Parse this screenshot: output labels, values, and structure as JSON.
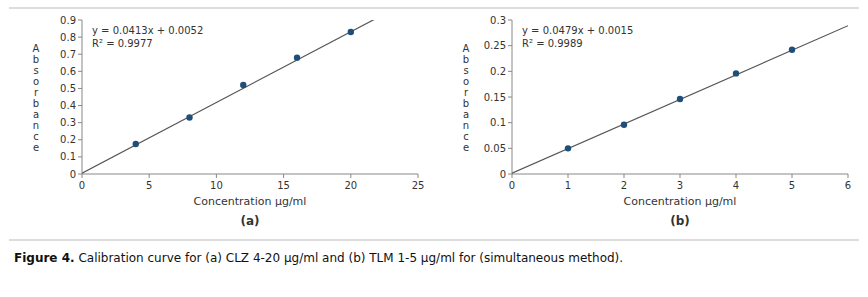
{
  "chart_data": [
    {
      "type": "scatter",
      "title": "(a)",
      "x_label": "Concentration µg/ml",
      "y_label": "Absorbance",
      "x": [
        4,
        8,
        12,
        16,
        20
      ],
      "values": [
        0.175,
        0.33,
        0.52,
        0.68,
        0.83
      ],
      "color": "#1F4E79",
      "trendline": {
        "slope": 0.0413,
        "intercept": 0.0052,
        "color": "#555555"
      },
      "annotations": [
        "y = 0.0413x + 0.0052",
        "R² = 0.9977"
      ],
      "xlim": [
        0,
        25
      ],
      "ylim": [
        0,
        0.9
      ],
      "xticks": [
        0,
        5,
        10,
        15,
        20,
        25
      ],
      "yticks": [
        0,
        0.1,
        0.2,
        0.3,
        0.4,
        0.5,
        0.6,
        0.7,
        0.8,
        0.9
      ],
      "grid": false
    },
    {
      "type": "scatter",
      "title": "(b)",
      "x_label": "Concentration µg/ml",
      "y_label": "Absorbance",
      "x": [
        1,
        2,
        3,
        4,
        5
      ],
      "values": [
        0.05,
        0.096,
        0.146,
        0.196,
        0.242
      ],
      "color": "#1F4E79",
      "trendline": {
        "slope": 0.0479,
        "intercept": 0.0015,
        "color": "#555555"
      },
      "annotations": [
        "y = 0.0479x + 0.0015",
        "R² = 0.9989"
      ],
      "xlim": [
        0,
        6
      ],
      "ylim": [
        0,
        0.3
      ],
      "xticks": [
        0,
        1,
        2,
        3,
        4,
        5,
        6
      ],
      "yticks": [
        0,
        0.05,
        0.1,
        0.15,
        0.2,
        0.25,
        0.3
      ],
      "grid": false
    }
  ],
  "caption_bold": "Figure 4.",
  "caption_rest": " Calibration curve for (a) CLZ 4-20 µg/ml and (b) TLM 1-5 µg/ml for (simultaneous method)."
}
